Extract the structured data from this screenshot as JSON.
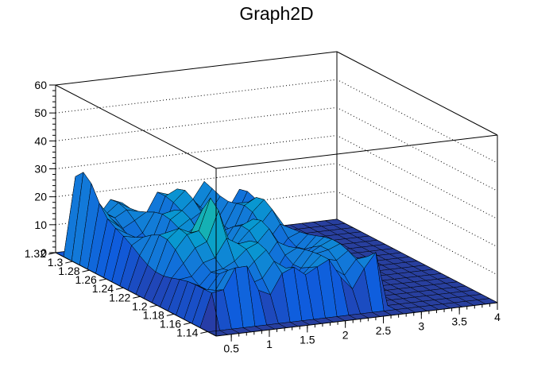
{
  "chart_data": {
    "type": "surface",
    "title": "Graph2D",
    "xlabel": "",
    "ylabel": "",
    "zlabel": "",
    "x_range": [
      0.3,
      4.0
    ],
    "y_range": [
      1.13,
      1.32
    ],
    "z_range": [
      0,
      60
    ],
    "x_ticks": [
      0.5,
      1,
      1.5,
      2,
      2.5,
      3,
      3.5,
      4
    ],
    "x_tick_labels": [
      "0.5",
      "1",
      "1.5",
      "2",
      "2.5",
      "3",
      "3.5",
      "4"
    ],
    "y_ticks": [
      1.14,
      1.16,
      1.18,
      1.2,
      1.22,
      1.24,
      1.26,
      1.28,
      1.3,
      1.32
    ],
    "y_tick_labels": [
      "1.14",
      "1.16",
      "1.18",
      "1.2",
      "1.22",
      "1.24",
      "1.26",
      "1.28",
      "1.3",
      "1.32"
    ],
    "z_ticks": [
      0,
      10,
      20,
      30,
      40,
      50,
      60
    ],
    "z_tick_labels": [
      "0",
      "10",
      "20",
      "30",
      "40",
      "50",
      "60"
    ],
    "grid": true,
    "colormap": "viridis-like (blue to yellow)",
    "grid_size": [
      24,
      20
    ],
    "peaks": [
      {
        "x": 0.85,
        "y": 1.205,
        "z": 38
      },
      {
        "x": 0.98,
        "y": 1.205,
        "z": 34
      },
      {
        "x": 1.05,
        "y": 1.205,
        "z": 32
      },
      {
        "x": 1.1,
        "y": 1.205,
        "z": 28
      },
      {
        "x": 1.3,
        "y": 1.205,
        "z": 27
      },
      {
        "x": 0.45,
        "y": 1.3,
        "z": 31
      },
      {
        "x": 1.55,
        "y": 1.205,
        "z": 21
      },
      {
        "x": 2.2,
        "y": 1.3,
        "z": 27
      }
    ]
  },
  "colors": {
    "low": "#352a87",
    "mid": "#1bb6a9",
    "high": "#f9fb0e",
    "flat": "#283f9e"
  }
}
